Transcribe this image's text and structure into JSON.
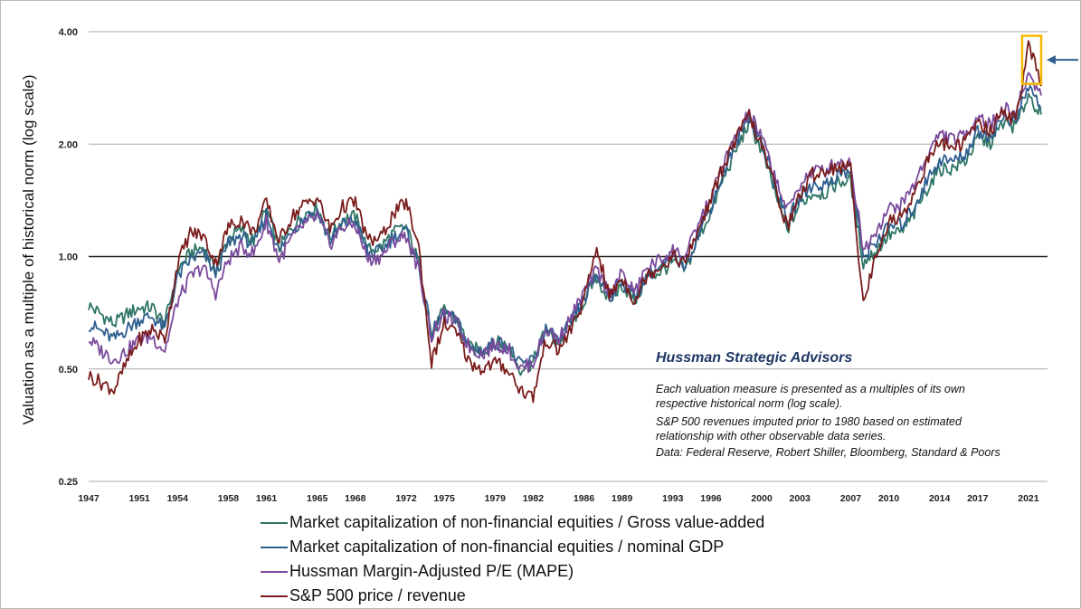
{
  "chart_data": {
    "type": "line",
    "ylabel": "Valuation as a multiple of historical norm (log scale)",
    "yscale": "log",
    "ylim": [
      0.25,
      4.0
    ],
    "yticks": [
      "4.00",
      "2.00",
      "1.00",
      "0.50",
      "0.25"
    ],
    "xlim": [
      1947,
      2022.5
    ],
    "xticks": [
      "1947",
      "1951",
      "1954",
      "1958",
      "1961",
      "1965",
      "1968",
      "1972",
      "1975",
      "1979",
      "1982",
      "1986",
      "1989",
      "1993",
      "1996",
      "2000",
      "2003",
      "2007",
      "2010",
      "2014",
      "2017",
      "2021"
    ],
    "reference_line": 1.0,
    "brand": "Hussman Strategic Advisors",
    "notes": [
      "Each valuation measure is presented as a multiples of its own",
      "respective historical norm (log scale).",
      "S&P 500 revenues imputed prior to 1980 based on estimated",
      "relationship with other observable data series.",
      "Data: Federal Reserve, Robert Shiller, Bloomberg, Standard & Poors"
    ],
    "highlight": {
      "x_range": [
        2020.5,
        2022.0
      ],
      "y_range": [
        2.9,
        3.9
      ],
      "color": "#f5b800"
    },
    "series": [
      {
        "name": "Market capitalization of non-financial equities / Gross value-added",
        "color": "#2e7566",
        "x": [
          1947,
          1948,
          1949,
          1950,
          1951,
          1952,
          1953,
          1954,
          1955,
          1956,
          1957,
          1958,
          1959,
          1960,
          1961,
          1962,
          1963,
          1964,
          1965,
          1966,
          1967,
          1968,
          1969,
          1970,
          1971,
          1972,
          1973,
          1974,
          1975,
          1976,
          1977,
          1978,
          1979,
          1980,
          1981,
          1982,
          1983,
          1984,
          1985,
          1986,
          1987,
          1988,
          1989,
          1990,
          1991,
          1992,
          1993,
          1994,
          1995,
          1996,
          1997,
          1998,
          1999,
          2000,
          2001,
          2002,
          2003,
          2004,
          2005,
          2006,
          2007,
          2008,
          2009,
          2010,
          2011,
          2012,
          2013,
          2014,
          2015,
          2016,
          2017,
          2018,
          2019,
          2020,
          2021,
          2022
        ],
        "y": [
          0.74,
          0.7,
          0.66,
          0.7,
          0.73,
          0.73,
          0.66,
          0.92,
          1.02,
          1.06,
          0.92,
          1.12,
          1.18,
          1.1,
          1.34,
          1.05,
          1.2,
          1.3,
          1.36,
          1.12,
          1.26,
          1.28,
          1.04,
          1.06,
          1.16,
          1.2,
          0.96,
          0.62,
          0.72,
          0.68,
          0.57,
          0.56,
          0.59,
          0.58,
          0.5,
          0.52,
          0.64,
          0.58,
          0.66,
          0.76,
          0.88,
          0.76,
          0.84,
          0.76,
          0.88,
          0.91,
          0.96,
          0.92,
          1.12,
          1.32,
          1.62,
          1.94,
          2.28,
          1.92,
          1.5,
          1.18,
          1.38,
          1.48,
          1.48,
          1.58,
          1.6,
          0.96,
          1.04,
          1.14,
          1.16,
          1.3,
          1.52,
          1.72,
          1.72,
          1.8,
          2.06,
          2.02,
          2.28,
          2.22,
          2.72,
          2.4
        ]
      },
      {
        "name": "Market capitalization of non-financial equities / nominal GDP",
        "color": "#2e5e8e",
        "x": [
          1947,
          1948,
          1949,
          1950,
          1951,
          1952,
          1953,
          1954,
          1955,
          1956,
          1957,
          1958,
          1959,
          1960,
          1961,
          1962,
          1963,
          1964,
          1965,
          1966,
          1967,
          1968,
          1969,
          1970,
          1971,
          1972,
          1973,
          1974,
          1975,
          1976,
          1977,
          1978,
          1979,
          1980,
          1981,
          1982,
          1983,
          1984,
          1985,
          1986,
          1987,
          1988,
          1989,
          1990,
          1991,
          1992,
          1993,
          1994,
          1995,
          1996,
          1997,
          1998,
          1999,
          2000,
          2001,
          2002,
          2003,
          2004,
          2005,
          2006,
          2007,
          2008,
          2009,
          2010,
          2011,
          2012,
          2013,
          2014,
          2015,
          2016,
          2017,
          2018,
          2019,
          2020,
          2021,
          2022
        ],
        "y": [
          0.66,
          0.63,
          0.6,
          0.64,
          0.68,
          0.69,
          0.64,
          0.88,
          0.98,
          1.02,
          0.9,
          1.08,
          1.14,
          1.07,
          1.3,
          1.03,
          1.18,
          1.27,
          1.32,
          1.1,
          1.22,
          1.25,
          1.02,
          1.03,
          1.13,
          1.17,
          0.94,
          0.62,
          0.71,
          0.67,
          0.57,
          0.56,
          0.59,
          0.58,
          0.51,
          0.53,
          0.64,
          0.59,
          0.67,
          0.77,
          0.89,
          0.78,
          0.86,
          0.78,
          0.9,
          0.93,
          0.99,
          0.95,
          1.15,
          1.36,
          1.68,
          2.02,
          2.38,
          2.02,
          1.58,
          1.24,
          1.44,
          1.56,
          1.55,
          1.66,
          1.68,
          1.0,
          1.1,
          1.2,
          1.22,
          1.36,
          1.6,
          1.82,
          1.8,
          1.88,
          2.16,
          2.1,
          2.36,
          2.3,
          2.86,
          2.5
        ]
      },
      {
        "name": "Hussman Margin-Adjusted P/E (MAPE)",
        "color": "#7a4a9c",
        "x": [
          1947,
          1948,
          1949,
          1950,
          1951,
          1952,
          1953,
          1954,
          1955,
          1956,
          1957,
          1958,
          1959,
          1960,
          1961,
          1962,
          1963,
          1964,
          1965,
          1966,
          1967,
          1968,
          1969,
          1970,
          1971,
          1972,
          1973,
          1974,
          1975,
          1976,
          1977,
          1978,
          1979,
          1980,
          1981,
          1982,
          1983,
          1984,
          1985,
          1986,
          1987,
          1988,
          1989,
          1990,
          1991,
          1992,
          1993,
          1994,
          1995,
          1996,
          1997,
          1998,
          1999,
          2000,
          2001,
          2002,
          2003,
          2004,
          2005,
          2006,
          2007,
          2008,
          2009,
          2010,
          2011,
          2012,
          2013,
          2014,
          2015,
          2016,
          2017,
          2018,
          2019,
          2020,
          2021,
          2022
        ],
        "y": [
          0.6,
          0.56,
          0.53,
          0.56,
          0.6,
          0.61,
          0.56,
          0.76,
          0.88,
          0.94,
          0.8,
          0.98,
          1.06,
          1.02,
          1.24,
          0.98,
          1.12,
          1.22,
          1.28,
          1.08,
          1.2,
          1.22,
          0.98,
          1.0,
          1.1,
          1.14,
          0.92,
          0.61,
          0.7,
          0.66,
          0.57,
          0.55,
          0.58,
          0.57,
          0.5,
          0.52,
          0.64,
          0.6,
          0.69,
          0.8,
          0.92,
          0.8,
          0.9,
          0.8,
          0.94,
          0.98,
          1.04,
          1.0,
          1.22,
          1.44,
          1.78,
          2.1,
          2.42,
          2.08,
          1.66,
          1.32,
          1.56,
          1.7,
          1.7,
          1.8,
          1.78,
          1.04,
          1.18,
          1.34,
          1.38,
          1.56,
          1.86,
          2.14,
          2.06,
          2.1,
          2.4,
          2.24,
          2.5,
          2.42,
          3.1,
          2.7
        ]
      },
      {
        "name": "S&P 500 price / revenue",
        "color": "#7a1c1c",
        "x": [
          1947,
          1948,
          1949,
          1950,
          1951,
          1952,
          1953,
          1954,
          1955,
          1956,
          1957,
          1958,
          1959,
          1960,
          1961,
          1962,
          1963,
          1964,
          1965,
          1966,
          1967,
          1968,
          1969,
          1970,
          1971,
          1972,
          1973,
          1974,
          1975,
          1976,
          1977,
          1978,
          1979,
          1980,
          1981,
          1982,
          1983,
          1984,
          1985,
          1986,
          1987,
          1988,
          1989,
          1990,
          1991,
          1992,
          1993,
          1994,
          1995,
          1996,
          1997,
          1998,
          1999,
          2000,
          2001,
          2002,
          2003,
          2004,
          2005,
          2006,
          2007,
          2008,
          2009,
          2010,
          2011,
          2012,
          2013,
          2014,
          2015,
          2016,
          2017,
          2018,
          2019,
          2020,
          2021,
          2022
        ],
        "y": [
          0.48,
          0.46,
          0.44,
          0.52,
          0.6,
          0.64,
          0.6,
          0.96,
          1.16,
          1.14,
          0.96,
          1.2,
          1.26,
          1.16,
          1.4,
          1.1,
          1.28,
          1.38,
          1.44,
          1.18,
          1.36,
          1.4,
          1.1,
          1.12,
          1.3,
          1.4,
          1.06,
          0.52,
          0.66,
          0.62,
          0.52,
          0.5,
          0.52,
          0.5,
          0.44,
          0.42,
          0.6,
          0.56,
          0.64,
          0.76,
          1.06,
          0.78,
          0.88,
          0.76,
          0.9,
          0.94,
          1.0,
          0.96,
          1.18,
          1.42,
          1.76,
          2.06,
          2.4,
          1.96,
          1.56,
          1.2,
          1.46,
          1.66,
          1.7,
          1.74,
          1.72,
          0.74,
          1.02,
          1.24,
          1.28,
          1.48,
          1.78,
          2.04,
          1.96,
          2.02,
          2.3,
          2.16,
          2.48,
          2.3,
          3.7,
          2.86
        ]
      }
    ]
  }
}
